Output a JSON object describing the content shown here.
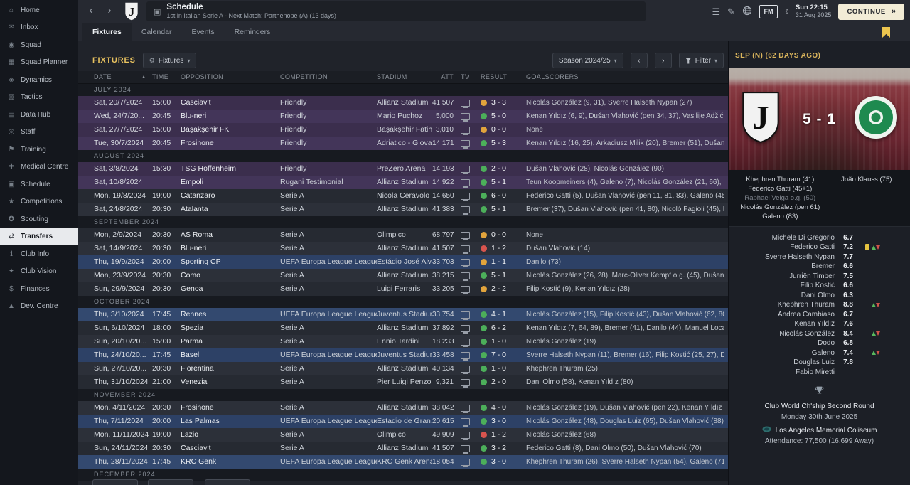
{
  "theme": {
    "accent_yellow": "#e8c25f",
    "continue_bg": "#f2ecd6",
    "result_colors": {
      "win": "#4caf5a",
      "draw": "#e2a43c",
      "loss": "#d8544e"
    }
  },
  "sidebar": {
    "items": [
      {
        "label": "Home",
        "icon": "home-icon",
        "active": false
      },
      {
        "label": "Inbox",
        "icon": "inbox-icon",
        "active": false
      },
      {
        "label": "Squad",
        "icon": "squad-icon",
        "active": false
      },
      {
        "label": "Squad Planner",
        "icon": "squad-planner-icon",
        "active": false
      },
      {
        "label": "Dynamics",
        "icon": "dynamics-icon",
        "active": false
      },
      {
        "label": "Tactics",
        "icon": "tactics-icon",
        "active": false
      },
      {
        "label": "Data Hub",
        "icon": "data-hub-icon",
        "active": false
      },
      {
        "label": "Staff",
        "icon": "staff-icon",
        "active": false
      },
      {
        "label": "Training",
        "icon": "training-icon",
        "active": false
      },
      {
        "label": "Medical Centre",
        "icon": "medical-centre-icon",
        "active": false
      },
      {
        "label": "Schedule",
        "icon": "schedule-icon",
        "active": false
      },
      {
        "label": "Competitions",
        "icon": "competitions-icon",
        "active": false
      },
      {
        "label": "Scouting",
        "icon": "scouting-icon",
        "active": false
      },
      {
        "label": "Transfers",
        "icon": "transfers-icon",
        "active": true
      },
      {
        "label": "Club Info",
        "icon": "club-info-icon",
        "active": false
      },
      {
        "label": "Club Vision",
        "icon": "club-vision-icon",
        "active": false
      },
      {
        "label": "Finances",
        "icon": "finances-icon",
        "active": false
      },
      {
        "label": "Dev. Centre",
        "icon": "dev-centre-icon",
        "active": false
      }
    ]
  },
  "topbar": {
    "title": "Schedule",
    "subtitle": "1st in Italian Serie A - Next Match: Parthenope (A) (13 days)",
    "fm_logo": "FM",
    "clock_time": "Sun 22:15",
    "clock_date": "31 Aug 2025",
    "continue_label": "CONTINUE"
  },
  "tabs": {
    "items": [
      "Fixtures",
      "Calendar",
      "Events",
      "Reminders"
    ],
    "active": 0
  },
  "toolbar": {
    "section_label": "FIXTURES",
    "view_button_label": "Fixtures",
    "season_label": "Season 2024/25",
    "filter_label": "Filter"
  },
  "fixtures_table": {
    "columns": [
      {
        "label": "DATE",
        "sorted": true,
        "align": "left"
      },
      {
        "label": "TIME",
        "align": "left"
      },
      {
        "label": "OPPOSITION",
        "align": "left"
      },
      {
        "label": "COMPETITION",
        "align": "left"
      },
      {
        "label": "STADIUM",
        "align": "left"
      },
      {
        "label": "ATT",
        "align": "right"
      },
      {
        "label": "TV",
        "align": "left"
      },
      {
        "label": "RESULT",
        "align": "left"
      },
      {
        "label": "GOALSCORERS",
        "align": "left"
      }
    ],
    "groups": [
      {
        "month": "JULY 2024",
        "rows": [
          {
            "date": "Sat, 20/7/2024",
            "time": "15:00",
            "opposition": "Casciavit",
            "competition": "Friendly",
            "stadium": "Allianz Stadium",
            "att": "41,507",
            "tv": true,
            "result": "3 - 3",
            "outcome": "draw",
            "goalscorers": "Nicolás González (9, 31), Sverre Halseth Nypan (27)",
            "type": "friendly"
          },
          {
            "date": "Wed, 24/7/20...",
            "time": "20:45",
            "opposition": "Blu-neri",
            "competition": "Friendly",
            "stadium": "Mario Puchoz",
            "att": "5,000",
            "tv": true,
            "result": "5 - 0",
            "outcome": "win",
            "goalscorers": "Kenan Yıldız (6, 9), Dušan Vlahović (pen 34, 37), Vasilije Adžić (89)",
            "type": "friendly"
          },
          {
            "date": "Sat, 27/7/2024",
            "time": "15:00",
            "opposition": "Başakşehir FK",
            "competition": "Friendly",
            "stadium": "Başakşehir Fatih...",
            "att": "3,010",
            "tv": true,
            "result": "0 - 0",
            "outcome": "draw",
            "goalscorers": "None",
            "type": "friendly"
          },
          {
            "date": "Tue, 30/7/2024",
            "time": "20:45",
            "opposition": "Frosinone",
            "competition": "Friendly",
            "stadium": "Adriatico - Giova...",
            "att": "14,171",
            "tv": true,
            "result": "5 - 3",
            "outcome": "win",
            "goalscorers": "Kenan Yıldız (16, 25), Arkadiusz Milik (20), Bremer (51), Dušan Vla...",
            "type": "friendly"
          }
        ]
      },
      {
        "month": "AUGUST 2024",
        "rows": [
          {
            "date": "Sat, 3/8/2024",
            "time": "15:30",
            "opposition": "TSG Hoffenheim",
            "competition": "Friendly",
            "stadium": "PreZero Arena",
            "att": "14,193",
            "tv": true,
            "result": "2 - 0",
            "outcome": "win",
            "goalscorers": "Dušan Vlahović (28), Nicolás González (90)",
            "type": "friendly"
          },
          {
            "date": "Sat, 10/8/2024",
            "time": "",
            "opposition": "Empoli",
            "competition": "Rugani Testimonial",
            "stadium": "Allianz Stadium",
            "att": "14,922",
            "tv": true,
            "result": "5 - 1",
            "outcome": "win",
            "goalscorers": "Teun Koopmeiners (4), Galeno (7), Nicolás González (21, 66), Ke...",
            "type": "friendly"
          },
          {
            "date": "Mon, 19/8/2024",
            "time": "19:00",
            "opposition": "Catanzaro",
            "competition": "Serie A",
            "stadium": "Nicola Ceravolo",
            "att": "14,650",
            "tv": true,
            "result": "6 - 0",
            "outcome": "win",
            "goalscorers": "Federico Gatti (5), Dušan Vlahović (pen 11, 81, 83), Galeno (45+1...",
            "type": "league"
          },
          {
            "date": "Sat, 24/8/2024",
            "time": "20:30",
            "opposition": "Atalanta",
            "competition": "Serie A",
            "stadium": "Allianz Stadium",
            "att": "41,383",
            "tv": true,
            "result": "5 - 1",
            "outcome": "win",
            "goalscorers": "Bremer (37), Dušan Vlahović (pen 41, 80), Nicolò Fagioli (45), Ken...",
            "type": "league"
          }
        ]
      },
      {
        "month": "SEPTEMBER 2024",
        "rows": [
          {
            "date": "Mon, 2/9/2024",
            "time": "20:30",
            "opposition": "AS Roma",
            "competition": "Serie A",
            "stadium": "Olimpico",
            "att": "68,797",
            "tv": true,
            "result": "0 - 0",
            "outcome": "draw",
            "goalscorers": "None",
            "type": "league"
          },
          {
            "date": "Sat, 14/9/2024",
            "time": "20:30",
            "opposition": "Blu-neri",
            "competition": "Serie A",
            "stadium": "Allianz Stadium",
            "att": "41,507",
            "tv": true,
            "result": "1 - 2",
            "outcome": "loss",
            "goalscorers": "Dušan Vlahović (14)",
            "type": "league"
          },
          {
            "date": "Thu, 19/9/2024",
            "time": "20:00",
            "opposition": "Sporting CP",
            "competition": "UEFA Europa League League P...",
            "stadium": "Estádio José Alva...",
            "att": "33,703",
            "tv": true,
            "result": "1 - 1",
            "outcome": "draw",
            "goalscorers": "Danilo (73)",
            "type": "europa"
          },
          {
            "date": "Mon, 23/9/2024",
            "time": "20:30",
            "opposition": "Como",
            "competition": "Serie A",
            "stadium": "Allianz Stadium",
            "att": "38,215",
            "tv": true,
            "result": "5 - 1",
            "outcome": "win",
            "goalscorers": "Nicolás González (26, 28), Marc-Oliver Kempf o.g. (45), Dušan Vl...",
            "type": "league"
          },
          {
            "date": "Sun, 29/9/2024",
            "time": "20:30",
            "opposition": "Genoa",
            "competition": "Serie A",
            "stadium": "Luigi Ferraris",
            "att": "33,205",
            "tv": true,
            "result": "2 - 2",
            "outcome": "draw",
            "goalscorers": "Filip Kostić (9), Kenan Yıldız (28)",
            "type": "league"
          }
        ]
      },
      {
        "month": "OCTOBER 2024",
        "rows": [
          {
            "date": "Thu, 3/10/2024",
            "time": "17:45",
            "opposition": "Rennes",
            "competition": "UEFA Europa League League P...",
            "stadium": "Juventus Stadium",
            "att": "33,754",
            "tv": true,
            "result": "4 - 1",
            "outcome": "win",
            "goalscorers": "Nicolás González (15), Filip Kostić (43), Dušan Vlahović (62, 80)",
            "type": "europa"
          },
          {
            "date": "Sun, 6/10/2024",
            "time": "18:00",
            "opposition": "Spezia",
            "competition": "Serie A",
            "stadium": "Allianz Stadium",
            "att": "37,892",
            "tv": true,
            "result": "6 - 2",
            "outcome": "win",
            "goalscorers": "Kenan Yıldız (7, 64, 89), Bremer (41), Danilo (44), Manuel Locatelli...",
            "type": "league"
          },
          {
            "date": "Sun, 20/10/20...",
            "time": "15:00",
            "opposition": "Parma",
            "competition": "Serie A",
            "stadium": "Ennio Tardini",
            "att": "18,233",
            "tv": true,
            "result": "1 - 0",
            "outcome": "win",
            "goalscorers": "Nicolás González (19)",
            "type": "league"
          },
          {
            "date": "Thu, 24/10/20...",
            "time": "17:45",
            "opposition": "Basel",
            "competition": "UEFA Europa League League P...",
            "stadium": "Juventus Stadium",
            "att": "33,458",
            "tv": true,
            "result": "7 - 0",
            "outcome": "win",
            "goalscorers": "Sverre Halseth Nypan (11), Bremer (16), Filip Kostić (25, 27), Duša...",
            "type": "europa"
          },
          {
            "date": "Sun, 27/10/20...",
            "time": "20:30",
            "opposition": "Fiorentina",
            "competition": "Serie A",
            "stadium": "Allianz Stadium",
            "att": "40,134",
            "tv": true,
            "result": "1 - 0",
            "outcome": "win",
            "goalscorers": "Khephren Thuram (25)",
            "type": "league"
          },
          {
            "date": "Thu, 31/10/2024",
            "time": "21:00",
            "opposition": "Venezia",
            "competition": "Serie A",
            "stadium": "Pier Luigi Penzo",
            "att": "9,321",
            "tv": true,
            "result": "2 - 0",
            "outcome": "win",
            "goalscorers": "Dani Olmo (58), Kenan Yıldız (80)",
            "type": "league"
          }
        ]
      },
      {
        "month": "NOVEMBER 2024",
        "rows": [
          {
            "date": "Mon, 4/11/2024",
            "time": "20:30",
            "opposition": "Frosinone",
            "competition": "Serie A",
            "stadium": "Allianz Stadium",
            "att": "38,042",
            "tv": true,
            "result": "4 - 0",
            "outcome": "win",
            "goalscorers": "Nicolás González (19), Dušan Vlahović (pen 22), Kenan Yıldız (36)...",
            "type": "league"
          },
          {
            "date": "Thu, 7/11/2024",
            "time": "20:00",
            "opposition": "Las Palmas",
            "competition": "UEFA Europa League League P...",
            "stadium": "Estadio de Gran...",
            "att": "20,615",
            "tv": true,
            "result": "3 - 0",
            "outcome": "win",
            "goalscorers": "Nicolás González (48), Douglas Luiz (65), Dušan Vlahović (88)",
            "type": "europa"
          },
          {
            "date": "Mon, 11/11/2024",
            "time": "19:00",
            "opposition": "Lazio",
            "competition": "Serie A",
            "stadium": "Olimpico",
            "att": "49,909",
            "tv": true,
            "result": "1 - 2",
            "outcome": "loss",
            "goalscorers": "Nicolás González (68)",
            "type": "league"
          },
          {
            "date": "Sun, 24/11/2024",
            "time": "20:30",
            "opposition": "Casciavit",
            "competition": "Serie A",
            "stadium": "Allianz Stadium",
            "att": "41,507",
            "tv": true,
            "result": "3 - 2",
            "outcome": "win",
            "goalscorers": "Federico Gatti (8), Dani Olmo (50), Dušan Vlahović (70)",
            "type": "league"
          },
          {
            "date": "Thu, 28/11/2024",
            "time": "17:45",
            "opposition": "KRC Genk",
            "competition": "UEFA Europa League League P...",
            "stadium": "KRC Genk Arena",
            "att": "18,054",
            "tv": true,
            "result": "3 - 0",
            "outcome": "win",
            "goalscorers": "Khephren Thuram (26), Sverre Halseth Nypan (54), Galeno (71)",
            "type": "europa"
          }
        ]
      },
      {
        "month": "DECEMBER 2024",
        "rows": []
      }
    ]
  },
  "match_panel": {
    "header": "SEP (N) (62 DAYS AGO)",
    "score": "5 - 1",
    "home_scorers": [
      {
        "text": "Khephren Thuram (41)",
        "muted": false
      },
      {
        "text": "Federico Gatti (45+1)",
        "muted": false
      },
      {
        "text": "Raphael Veiga o.g. (50)",
        "muted": true
      },
      {
        "text": "Nicolás González (pen 61)",
        "muted": false
      },
      {
        "text": "Galeno (83)",
        "muted": false
      }
    ],
    "away_scorers": [
      {
        "text": "João Klauss (75)",
        "muted": false
      }
    ],
    "ratings": [
      {
        "name": "Michele Di Gregorio",
        "rating": "6.7",
        "icons": []
      },
      {
        "name": "Federico Gatti",
        "rating": "7.2",
        "icons": [
          "yellow-card",
          "sub"
        ]
      },
      {
        "name": "Sverre Halseth Nypan",
        "rating": "7.7",
        "icons": []
      },
      {
        "name": "Bremer",
        "rating": "6.6",
        "icons": []
      },
      {
        "name": "Jurriën Timber",
        "rating": "7.5",
        "icons": []
      },
      {
        "name": "Filip Kostić",
        "rating": "6.6",
        "icons": []
      },
      {
        "name": "Dani Olmo",
        "rating": "6.3",
        "icons": []
      },
      {
        "name": "Khephren Thuram",
        "rating": "8.8",
        "icons": [
          "sub"
        ]
      },
      {
        "name": "Andrea Cambiaso",
        "rating": "6.7",
        "icons": []
      },
      {
        "name": "Kenan Yıldız",
        "rating": "7.6",
        "icons": []
      },
      {
        "name": "Nicolás González",
        "rating": "8.4",
        "icons": [
          "sub"
        ]
      },
      {
        "name": "Dodo",
        "rating": "6.8",
        "icons": []
      },
      {
        "name": "Galeno",
        "rating": "7.4",
        "icons": [
          "sub"
        ]
      },
      {
        "name": "Douglas Luiz",
        "rating": "7.8",
        "icons": []
      },
      {
        "name": "Fabio Miretti",
        "rating": "",
        "icons": []
      }
    ],
    "upcoming": {
      "competition": "Club World Ch'ship Second Round",
      "date": "Monday 30th June 2025",
      "venue": "Los Angeles Memorial Coliseum",
      "attendance": "Attendance: 77,500 (16,699 Away)"
    }
  }
}
